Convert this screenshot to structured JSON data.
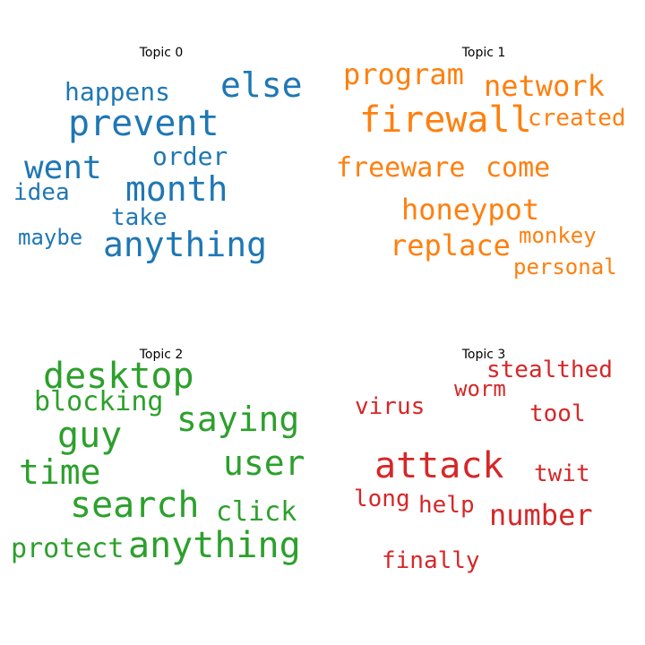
{
  "topics": [
    {
      "title": "Topic 0",
      "color": "#1f77b4",
      "words": [
        "else",
        "happens",
        "prevent",
        "order",
        "went",
        "month",
        "idea",
        "take",
        "maybe",
        "anything"
      ]
    },
    {
      "title": "Topic 1",
      "color": "#ff7f0e",
      "words": [
        "program",
        "network",
        "firewall",
        "created",
        "freeware",
        "come",
        "honeypot",
        "monkey",
        "replace",
        "personal"
      ]
    },
    {
      "title": "Topic 2",
      "color": "#2ca02c",
      "words": [
        "desktop",
        "blocking",
        "saying",
        "guy",
        "user",
        "time",
        "search",
        "click",
        "protect",
        "anything"
      ]
    },
    {
      "title": "Topic 3",
      "color": "#d62728",
      "words": [
        "stealthed",
        "worm",
        "virus",
        "tool",
        "attack",
        "twit",
        "long",
        "help",
        "number",
        "finally"
      ]
    }
  ]
}
